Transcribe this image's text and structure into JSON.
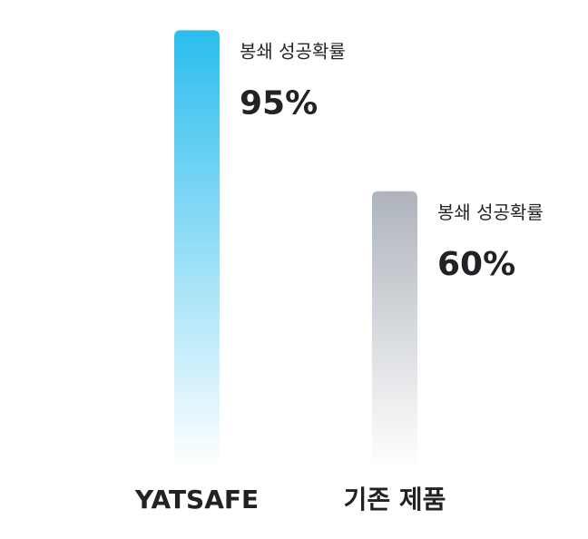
{
  "chart_data": {
    "type": "bar",
    "categories": [
      "YATSAFE",
      "기존 제품"
    ],
    "values": [
      95,
      60
    ],
    "value_labels": [
      "95%",
      "60%"
    ],
    "metric_label": "봉쇄 성공확률",
    "ylim": [
      0,
      100
    ],
    "grid": false,
    "series_colors": [
      {
        "top": "#2BBDEE",
        "bottom": "#FFFFFF"
      },
      {
        "top": "#AEB4BC",
        "bottom": "#FFFFFF"
      }
    ]
  }
}
